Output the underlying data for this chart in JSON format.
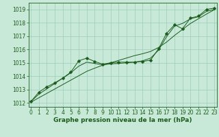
{
  "xlabel": "Graphe pression niveau de la mer (hPa)",
  "x_hours": [
    0,
    1,
    2,
    3,
    4,
    5,
    6,
    7,
    8,
    9,
    10,
    11,
    12,
    13,
    14,
    15,
    16,
    17,
    18,
    19,
    20,
    21,
    22,
    23
  ],
  "pressure_main": [
    1012.1,
    1012.8,
    1013.2,
    1013.5,
    1013.85,
    1014.3,
    1015.15,
    1015.35,
    1015.1,
    1014.9,
    1015.0,
    1015.05,
    1015.05,
    1015.05,
    1015.1,
    1015.2,
    1016.05,
    1017.2,
    1017.85,
    1017.55,
    1018.35,
    1018.5,
    1019.0,
    1019.1
  ],
  "pressure_smooth": [
    1012.1,
    1012.65,
    1013.05,
    1013.45,
    1013.85,
    1014.25,
    1014.75,
    1015.05,
    1014.95,
    1014.85,
    1014.92,
    1014.95,
    1015.0,
    1015.05,
    1015.15,
    1015.35,
    1015.95,
    1016.95,
    1017.75,
    1017.95,
    1018.3,
    1018.45,
    1018.85,
    1019.0
  ],
  "pressure_trend": [
    1012.05,
    1012.38,
    1012.71,
    1013.04,
    1013.37,
    1013.7,
    1014.03,
    1014.36,
    1014.6,
    1014.82,
    1015.0,
    1015.18,
    1015.36,
    1015.54,
    1015.68,
    1015.85,
    1016.15,
    1016.55,
    1017.05,
    1017.5,
    1017.95,
    1018.3,
    1018.65,
    1018.98
  ],
  "ylim": [
    1011.7,
    1019.5
  ],
  "yticks": [
    1012,
    1013,
    1014,
    1015,
    1016,
    1017,
    1018,
    1019
  ],
  "xlim": [
    -0.3,
    23.3
  ],
  "bg_color": "#c8e8d8",
  "grid_color": "#99ccbb",
  "line_color": "#1a5c1a",
  "marker": "D",
  "marker_size": 2.5,
  "tick_fontsize": 5.5,
  "label_fontsize": 6.5
}
